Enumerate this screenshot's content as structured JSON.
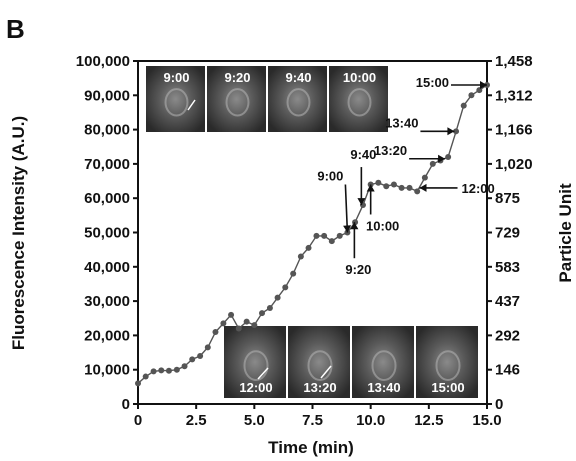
{
  "panel_label": "B",
  "chart_data": {
    "type": "line",
    "xlabel": "Time (min)",
    "ylabel": "Fluorescence Intensity (A.U.)",
    "y2label": "Particle Unit",
    "xlim": [
      0,
      15
    ],
    "ylim": [
      0,
      100000
    ],
    "y2lim": [
      0,
      1458
    ],
    "x_ticks": [
      "0",
      "2.5",
      "5.0",
      "7.5",
      "10.0",
      "12.5",
      "15.0"
    ],
    "y_ticks": [
      "0",
      "10,000",
      "20,000",
      "30,000",
      "40,000",
      "50,000",
      "60,000",
      "70,000",
      "80,000",
      "90,000",
      "100,000"
    ],
    "y2_ticks": [
      "0",
      "146",
      "292",
      "437",
      "583",
      "729",
      "875",
      "1,020",
      "1,166",
      "1,312",
      "1,458"
    ],
    "grid": false,
    "series": [
      {
        "color": "#555555",
        "x": [
          0,
          0.33,
          0.67,
          1.0,
          1.33,
          1.67,
          2.0,
          2.33,
          2.67,
          3.0,
          3.33,
          3.67,
          4.0,
          4.33,
          4.67,
          5.0,
          5.33,
          5.67,
          6.0,
          6.33,
          6.67,
          7.0,
          7.33,
          7.67,
          8.0,
          8.33,
          8.67,
          9.0,
          9.33,
          9.67,
          10.0,
          10.33,
          10.67,
          11.0,
          11.33,
          11.67,
          12.0,
          12.33,
          12.67,
          13.0,
          13.33,
          13.67,
          14.0,
          14.33,
          14.67,
          15.0
        ],
        "values": [
          6000,
          8000,
          9500,
          9800,
          9700,
          10000,
          11000,
          13000,
          14000,
          16500,
          21000,
          23500,
          26000,
          22000,
          24000,
          23000,
          26500,
          28000,
          31000,
          34000,
          38000,
          43000,
          45500,
          49000,
          49000,
          47500,
          49000,
          50000,
          53000,
          58000,
          64000,
          64500,
          63500,
          64000,
          63000,
          63000,
          62000,
          66000,
          70000,
          71000,
          72000,
          79500,
          87000,
          90000,
          91500,
          93000
        ]
      }
    ],
    "annotations": [
      {
        "label": "9:00",
        "x": 9.0,
        "y": 50000
      },
      {
        "label": "9:20",
        "x": 9.3,
        "y": 53000
      },
      {
        "label": "9:40",
        "x": 9.6,
        "y": 58000
      },
      {
        "label": "10:00",
        "x": 10.0,
        "y": 64000
      },
      {
        "label": "12:00",
        "x": 12.1,
        "y": 63000
      },
      {
        "label": "13:20",
        "x": 13.2,
        "y": 71500
      },
      {
        "label": "13:40",
        "x": 13.6,
        "y": 79500
      },
      {
        "label": "15:00",
        "x": 15.0,
        "y": 93000
      }
    ],
    "inset_images": {
      "top": [
        "9:00",
        "9:20",
        "9:40",
        "10:00"
      ],
      "bottom": [
        "12:00",
        "13:20",
        "13:40",
        "15:00"
      ]
    }
  }
}
